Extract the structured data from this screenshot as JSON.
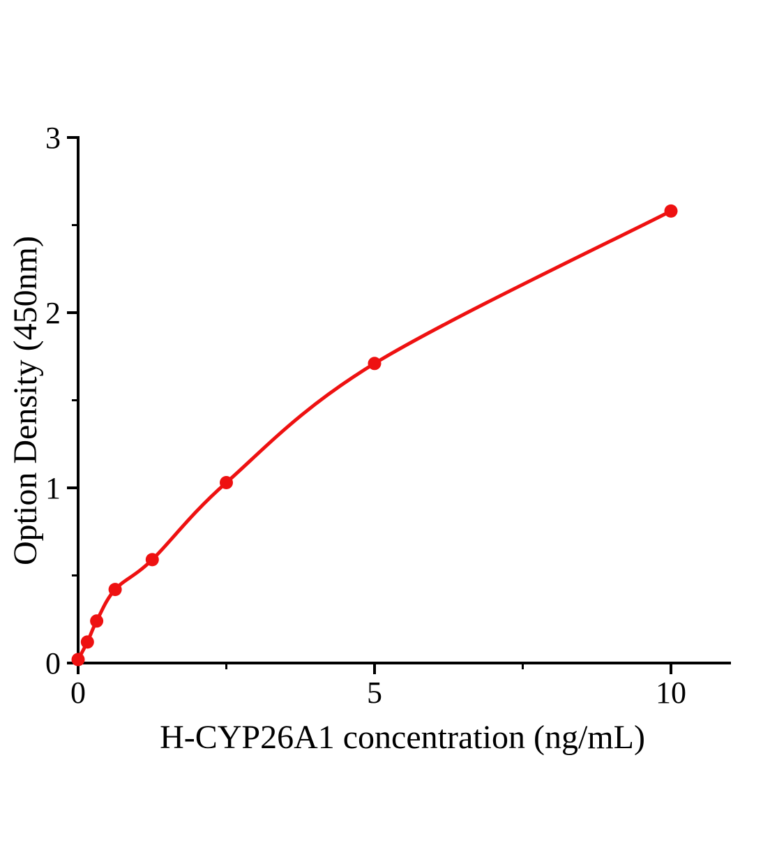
{
  "chart_data": {
    "type": "scatter",
    "curve": "smooth-fit-through-points",
    "title": "",
    "xlabel": "H-CYP26A1 concentration (ng/mL)",
    "ylabel": "Option Density (450nm)",
    "legend": null,
    "grid": false,
    "x_axis": {
      "range": [
        0,
        11
      ],
      "major_ticks": [
        {
          "value": 0,
          "label": "0"
        },
        {
          "value": 5,
          "label": "5"
        },
        {
          "value": 10,
          "label": "10"
        }
      ],
      "minor_ticks": [
        2.5,
        7.5
      ]
    },
    "y_axis": {
      "range": [
        0,
        3
      ],
      "major_ticks": [
        {
          "value": 0,
          "label": "0"
        },
        {
          "value": 1,
          "label": "1"
        },
        {
          "value": 2,
          "label": "2"
        },
        {
          "value": 3,
          "label": "3"
        }
      ],
      "minor_ticks": [
        0.5,
        1.5,
        2.5
      ]
    },
    "points": [
      {
        "x": 0,
        "y": 0.02
      },
      {
        "x": 0.156,
        "y": 0.12
      },
      {
        "x": 0.313,
        "y": 0.24
      },
      {
        "x": 0.625,
        "y": 0.42
      },
      {
        "x": 1.25,
        "y": 0.59
      },
      {
        "x": 2.5,
        "y": 1.03
      },
      {
        "x": 5,
        "y": 1.71
      },
      {
        "x": 10,
        "y": 2.58
      }
    ],
    "colors": {
      "curve": "#ee1111",
      "marker": "#ee1111",
      "axis": "#000000",
      "background": "#ffffff"
    }
  }
}
